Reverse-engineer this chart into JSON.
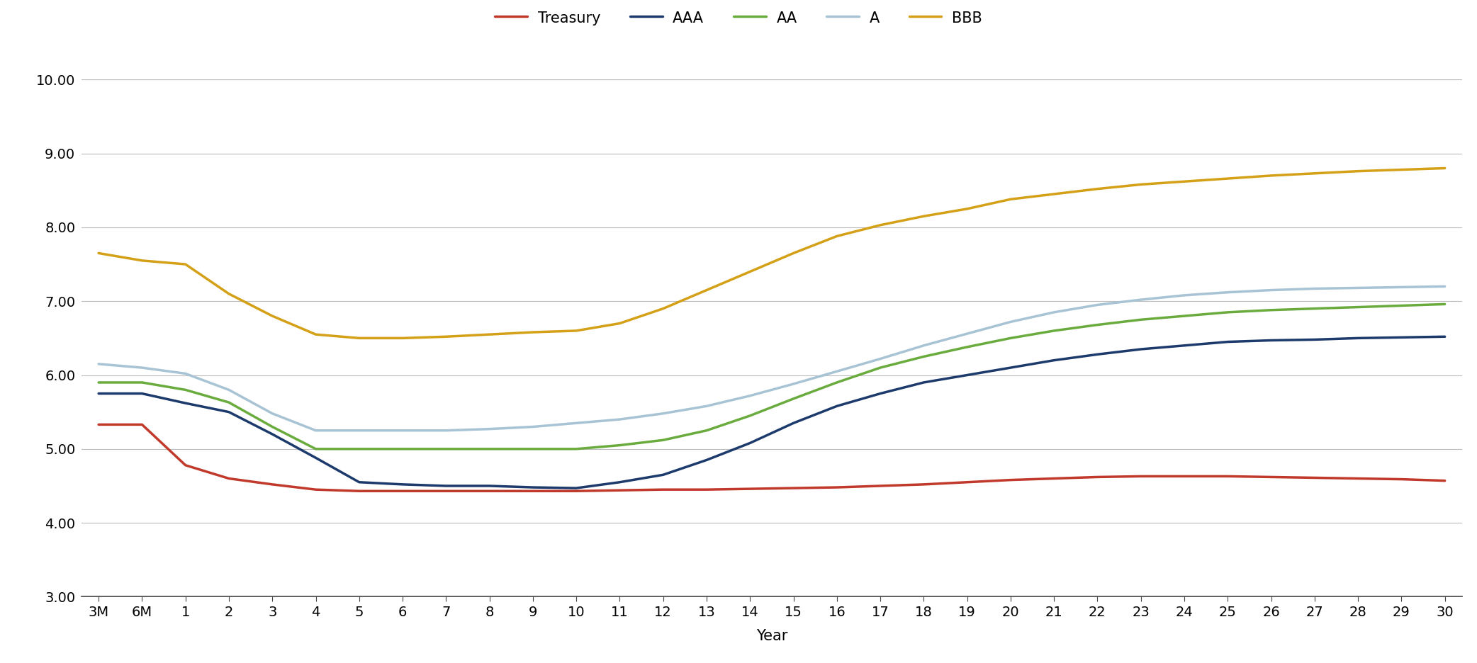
{
  "x_labels": [
    "3M",
    "6M",
    "1",
    "2",
    "3",
    "4",
    "5",
    "6",
    "7",
    "8",
    "9",
    "10",
    "11",
    "12",
    "13",
    "14",
    "15",
    "16",
    "17",
    "18",
    "19",
    "20",
    "21",
    "22",
    "23",
    "24",
    "25",
    "26",
    "27",
    "28",
    "29",
    "30"
  ],
  "series": {
    "Treasury": {
      "color": "#C0392B",
      "linewidth": 2.5,
      "values": [
        5.33,
        5.33,
        4.78,
        4.6,
        4.52,
        4.45,
        4.43,
        4.43,
        4.43,
        4.43,
        4.43,
        4.43,
        4.44,
        4.45,
        4.45,
        4.46,
        4.47,
        4.48,
        4.5,
        4.52,
        4.55,
        4.58,
        4.6,
        4.62,
        4.63,
        4.63,
        4.63,
        4.62,
        4.61,
        4.6,
        4.59,
        4.57
      ]
    },
    "AAA": {
      "color": "#1C3A6B",
      "linewidth": 2.5,
      "values": [
        5.75,
        5.75,
        5.62,
        5.5,
        5.2,
        4.88,
        4.55,
        4.52,
        4.5,
        4.5,
        4.48,
        4.47,
        4.55,
        4.65,
        4.85,
        5.08,
        5.35,
        5.58,
        5.75,
        5.9,
        6.0,
        6.1,
        6.2,
        6.28,
        6.35,
        6.4,
        6.45,
        6.47,
        6.48,
        6.5,
        6.51,
        6.52
      ]
    },
    "AA": {
      "color": "#6AAB3E",
      "linewidth": 2.5,
      "values": [
        5.9,
        5.9,
        5.8,
        5.63,
        5.3,
        5.0,
        5.0,
        5.0,
        5.0,
        5.0,
        5.0,
        5.0,
        5.05,
        5.12,
        5.25,
        5.45,
        5.68,
        5.9,
        6.1,
        6.25,
        6.38,
        6.5,
        6.6,
        6.68,
        6.75,
        6.8,
        6.85,
        6.88,
        6.9,
        6.92,
        6.94,
        6.96
      ]
    },
    "A": {
      "color": "#A8C4D4",
      "linewidth": 2.5,
      "values": [
        6.15,
        6.1,
        6.02,
        5.8,
        5.48,
        5.25,
        5.25,
        5.25,
        5.25,
        5.27,
        5.3,
        5.35,
        5.4,
        5.48,
        5.58,
        5.72,
        5.88,
        6.05,
        6.22,
        6.4,
        6.56,
        6.72,
        6.85,
        6.95,
        7.02,
        7.08,
        7.12,
        7.15,
        7.17,
        7.18,
        7.19,
        7.2
      ]
    },
    "BBB": {
      "color": "#D4A017",
      "linewidth": 2.5,
      "values": [
        7.65,
        7.55,
        7.5,
        7.1,
        6.8,
        6.55,
        6.5,
        6.5,
        6.52,
        6.55,
        6.58,
        6.6,
        6.7,
        6.9,
        7.15,
        7.4,
        7.65,
        7.88,
        8.03,
        8.15,
        8.25,
        8.38,
        8.45,
        8.52,
        8.58,
        8.62,
        8.66,
        8.7,
        8.73,
        8.76,
        8.78,
        8.8
      ]
    }
  },
  "ylim": [
    3.0,
    10.0
  ],
  "yticks": [
    3.0,
    4.0,
    5.0,
    6.0,
    7.0,
    8.0,
    9.0,
    10.0
  ],
  "ytick_labels": [
    "3.00",
    "4.00",
    "5.00",
    "6.00",
    "7.00",
    "8.00",
    "9.00",
    "10.00"
  ],
  "xlabel": "Year",
  "legend_order": [
    "Treasury",
    "AAA",
    "AA",
    "A",
    "BBB"
  ],
  "background_color": "#FFFFFF",
  "grid_color": "#BBBBBB",
  "fig_width": 20.84,
  "fig_height": 9.36,
  "dpi": 100
}
